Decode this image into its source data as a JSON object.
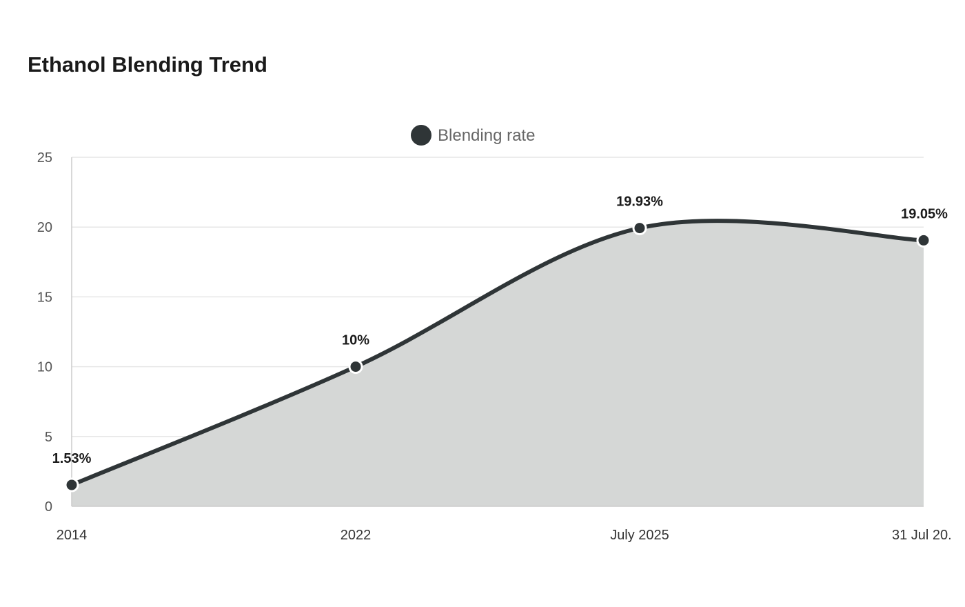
{
  "chart_data": {
    "type": "area",
    "title": "Ethanol Blending Trend",
    "xlabel": "",
    "ylabel": "",
    "categories": [
      "2014",
      "2022",
      "July 2025",
      "31 Jul 20."
    ],
    "series": [
      {
        "name": "Blending rate",
        "values": [
          1.53,
          10,
          19.93,
          19.05
        ],
        "labels": [
          "1.53%",
          "10%",
          "19.93%",
          "19.05%"
        ]
      }
    ],
    "ylim": [
      0,
      25
    ],
    "yticks": [
      "0",
      "5",
      "10",
      "15",
      "20",
      "25"
    ],
    "grid": true,
    "legend_position": "top-center",
    "colors": {
      "line": "#2f3537",
      "fill": "#d5d7d6",
      "marker_stroke": "#ffffff",
      "grid": "#e6e6e6",
      "axis": "#cccccc"
    }
  }
}
